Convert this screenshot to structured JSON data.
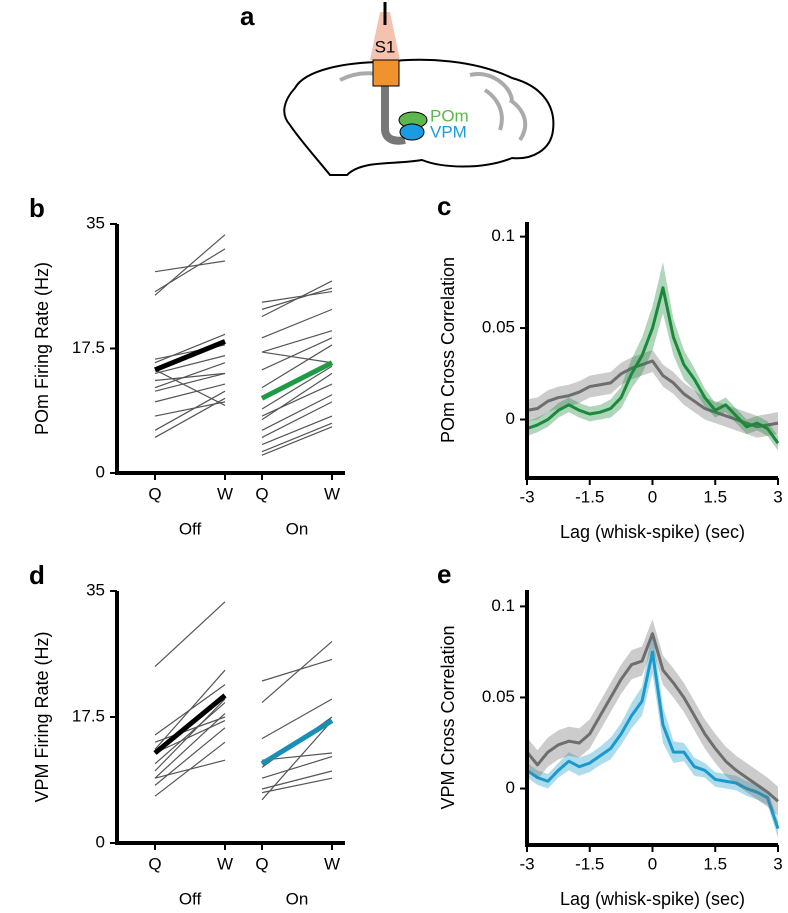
{
  "diagram": {
    "panel": "a",
    "region_labels": [
      "S1",
      "POm",
      "VPM"
    ]
  },
  "chart_data": [
    {
      "type": "paired",
      "panel": "b",
      "ylabel": "POm Firing Rate (Hz)",
      "ylim": [
        0,
        35
      ],
      "yticks": [
        0,
        17.5,
        35
      ],
      "categories": [
        "Q",
        "W",
        "Q",
        "W"
      ],
      "line_color": "#555555",
      "groups": [
        {
          "label": "Off",
          "mean_color": "#000000",
          "mean": [
            14.5,
            18.5
          ],
          "lines": [
            [
              25,
              33.5
            ],
            [
              25.5,
              31.5
            ],
            [
              28.3,
              29.8
            ],
            [
              16,
              18
            ],
            [
              15.5,
              19.5
            ],
            [
              14,
              16.5
            ],
            [
              13,
              14
            ],
            [
              12,
              15.5
            ],
            [
              11.5,
              14
            ],
            [
              10,
              12.5
            ],
            [
              8,
              10
            ],
            [
              6,
              11.5
            ],
            [
              5,
              10.5
            ],
            [
              14.5,
              9.5
            ]
          ]
        },
        {
          "label": "On",
          "mean_color": "#1e9a45",
          "mean": [
            10.5,
            15.5
          ],
          "lines": [
            [
              22,
              27
            ],
            [
              24,
              25.5
            ],
            [
              23,
              26
            ],
            [
              19,
              23
            ],
            [
              17,
              20
            ],
            [
              17,
              15.5
            ],
            [
              14.5,
              19
            ],
            [
              12,
              18
            ],
            [
              9,
              15
            ],
            [
              8,
              12.5
            ],
            [
              7.5,
              14
            ],
            [
              6,
              11
            ],
            [
              5,
              10
            ],
            [
              4,
              8
            ],
            [
              3,
              7
            ],
            [
              2.5,
              6.5
            ]
          ]
        }
      ]
    },
    {
      "type": "line",
      "panel": "c",
      "ylabel": "POm Cross Correlation",
      "xlabel": "Lag (whisk-spike) (sec)",
      "xlim": [
        -3,
        3
      ],
      "xticks": [
        -3,
        -1.5,
        0,
        1.5,
        3
      ],
      "ylim": [
        -0.032,
        0.108
      ],
      "yticks": [
        0,
        0.05,
        0.1
      ],
      "x": [
        -3,
        -2.75,
        -2.5,
        -2.25,
        -2,
        -1.75,
        -1.5,
        -1.25,
        -1,
        -0.75,
        -0.5,
        -0.25,
        0,
        0.25,
        0.5,
        0.75,
        1,
        1.25,
        1.5,
        1.75,
        2,
        2.25,
        2.5,
        2.75,
        3
      ],
      "series": [
        {
          "color": "#6e6e6e",
          "values": [
            0.005,
            0.006,
            0.01,
            0.012,
            0.013,
            0.015,
            0.018,
            0.019,
            0.02,
            0.025,
            0.028,
            0.03,
            0.032,
            0.024,
            0.02,
            0.014,
            0.01,
            0.006,
            0.004,
            0.002,
            0.0,
            -0.002,
            -0.004,
            -0.003,
            -0.002
          ],
          "error": [
            0.006,
            0.006,
            0.006,
            0.006,
            0.006,
            0.006,
            0.006,
            0.006,
            0.006,
            0.006,
            0.006,
            0.006,
            0.006,
            0.006,
            0.006,
            0.006,
            0.006,
            0.006,
            0.006,
            0.006,
            0.006,
            0.006,
            0.006,
            0.006,
            0.006
          ]
        },
        {
          "color": "#1a8a3a",
          "values": [
            -0.005,
            -0.003,
            0.0,
            0.005,
            0.008,
            0.005,
            0.003,
            0.004,
            0.006,
            0.012,
            0.025,
            0.035,
            0.05,
            0.072,
            0.045,
            0.03,
            0.022,
            0.012,
            0.005,
            0.008,
            0.002,
            -0.004,
            -0.002,
            -0.005,
            -0.013
          ],
          "error": [
            0.004,
            0.004,
            0.004,
            0.004,
            0.004,
            0.004,
            0.004,
            0.004,
            0.005,
            0.006,
            0.008,
            0.01,
            0.012,
            0.014,
            0.01,
            0.008,
            0.006,
            0.005,
            0.004,
            0.004,
            0.004,
            0.004,
            0.004,
            0.004,
            0.004
          ]
        }
      ]
    },
    {
      "type": "paired",
      "panel": "d",
      "ylabel": "VPM Firing Rate (Hz)",
      "ylim": [
        0,
        35
      ],
      "yticks": [
        0,
        17.5,
        35
      ],
      "categories": [
        "Q",
        "W",
        "Q",
        "W"
      ],
      "line_color": "#555555",
      "groups": [
        {
          "label": "Off",
          "mean_color": "#000000",
          "mean": [
            12.5,
            20.5
          ],
          "lines": [
            [
              24.5,
              33.5
            ],
            [
              15,
              22
            ],
            [
              14,
              17.5
            ],
            [
              13,
              24
            ],
            [
              12.5,
              17
            ],
            [
              11,
              19.5
            ],
            [
              10,
              20
            ],
            [
              9,
              18
            ],
            [
              9,
              11.5
            ],
            [
              8,
              16
            ],
            [
              6.5,
              14
            ]
          ]
        },
        {
          "label": "On",
          "mean_color": "#1a8fb5",
          "mean": [
            11,
            17
          ],
          "lines": [
            [
              22.5,
              25.5
            ],
            [
              19.5,
              28
            ],
            [
              14.5,
              20
            ],
            [
              11.5,
              12.5
            ],
            [
              10.5,
              17.5
            ],
            [
              9,
              12
            ],
            [
              7.5,
              10
            ],
            [
              7,
              9
            ],
            [
              6,
              17
            ]
          ]
        }
      ]
    },
    {
      "type": "line",
      "panel": "e",
      "ylabel": "VPM Cross Correlation",
      "xlabel": "Lag (whisk-spike) (sec)",
      "xlim": [
        -3,
        3
      ],
      "xticks": [
        -3,
        -1.5,
        0,
        1.5,
        3
      ],
      "ylim": [
        -0.031,
        0.109
      ],
      "yticks": [
        0,
        0.05,
        0.1
      ],
      "x": [
        -3,
        -2.75,
        -2.5,
        -2.25,
        -2,
        -1.75,
        -1.5,
        -1.25,
        -1,
        -0.75,
        -0.5,
        -0.25,
        0,
        0.25,
        0.5,
        0.75,
        1,
        1.25,
        1.5,
        1.75,
        2,
        2.25,
        2.5,
        2.75,
        3
      ],
      "series": [
        {
          "color": "#1a9acb",
          "values": [
            0.01,
            0.006,
            0.004,
            0.01,
            0.015,
            0.012,
            0.014,
            0.018,
            0.022,
            0.03,
            0.04,
            0.048,
            0.075,
            0.035,
            0.02,
            0.02,
            0.012,
            0.01,
            0.005,
            0.004,
            0.003,
            0.0,
            -0.002,
            -0.005,
            -0.022
          ],
          "error": [
            0.004,
            0.004,
            0.004,
            0.004,
            0.005,
            0.005,
            0.005,
            0.005,
            0.006,
            0.006,
            0.007,
            0.008,
            0.012,
            0.01,
            0.006,
            0.005,
            0.005,
            0.004,
            0.004,
            0.004,
            0.004,
            0.004,
            0.004,
            0.004,
            0.005
          ]
        },
        {
          "color": "#6e6e6e",
          "values": [
            0.02,
            0.013,
            0.02,
            0.024,
            0.026,
            0.025,
            0.03,
            0.04,
            0.05,
            0.06,
            0.068,
            0.07,
            0.085,
            0.065,
            0.058,
            0.05,
            0.04,
            0.03,
            0.022,
            0.015,
            0.01,
            0.006,
            0.002,
            -0.002,
            -0.007
          ],
          "error": [
            0.008,
            0.008,
            0.008,
            0.008,
            0.008,
            0.008,
            0.008,
            0.008,
            0.008,
            0.008,
            0.008,
            0.008,
            0.008,
            0.008,
            0.008,
            0.008,
            0.008,
            0.008,
            0.008,
            0.008,
            0.008,
            0.008,
            0.008,
            0.008,
            0.008
          ]
        }
      ]
    }
  ]
}
